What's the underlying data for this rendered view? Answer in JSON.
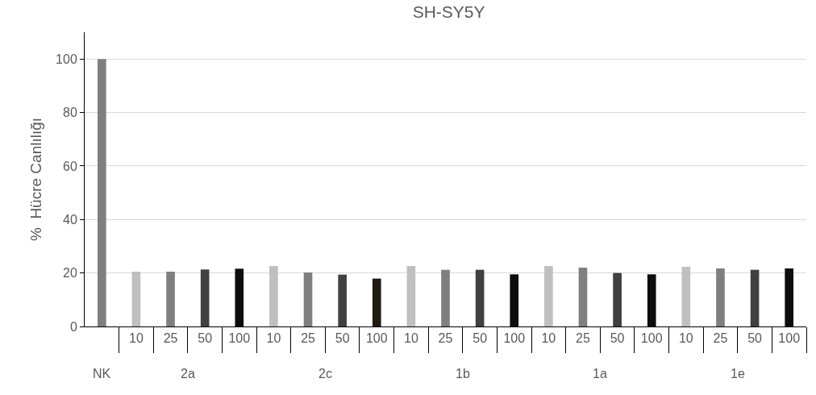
{
  "chart_data": {
    "type": "bar",
    "title": "SH-SY5Y",
    "ylabel": "%  Hücre Canlılığı",
    "categories": [
      null,
      "10",
      "25",
      "50",
      "100",
      "10",
      "25",
      "50",
      "100",
      "10",
      "25",
      "50",
      "100",
      "10",
      "25",
      "50",
      "100",
      "10",
      "25",
      "50",
      "100"
    ],
    "values": [
      100,
      20.5,
      20.5,
      21.3,
      21.6,
      22.6,
      20.2,
      19.4,
      17.9,
      22.6,
      21.2,
      21.2,
      19.5,
      22.6,
      22.0,
      20.0,
      19.5,
      22.3,
      21.7,
      21.2,
      21.7
    ],
    "colors": [
      "#7f7f7f",
      "#bfbfbf",
      "#7f7f7f",
      "#404040",
      "#0d0d0d",
      "#bfbfbf",
      "#7f7f7f",
      "#404040",
      "#1f1b10",
      "#bfbfbf",
      "#7f7f7f",
      "#404040",
      "#0d0d0d",
      "#bfbfbf",
      "#7f7f7f",
      "#404040",
      "#0d0d0d",
      "#bfbfbf",
      "#7f7f7f",
      "#404040",
      "#0d0d0d"
    ],
    "annotations": [
      "NK",
      "2a",
      "2c",
      "1b",
      "1a",
      "1e"
    ],
    "ylim": [
      0,
      110
    ],
    "yticks": [
      0,
      20,
      40,
      60,
      80,
      100
    ],
    "grid": "y"
  }
}
